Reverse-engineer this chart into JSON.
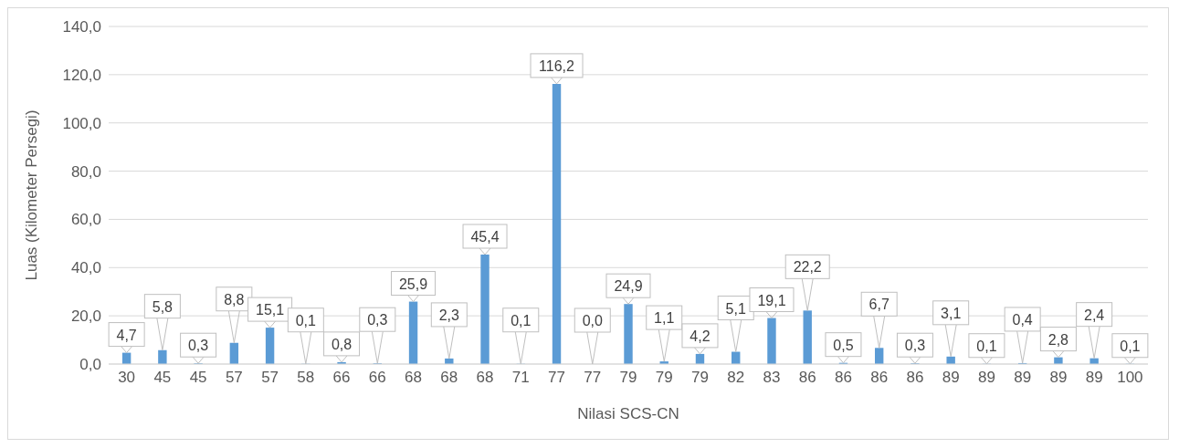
{
  "chart_data": {
    "type": "bar",
    "xlabel": "Nilasi SCS-CN",
    "ylabel": "Luas (Kilometer Persegi)",
    "categories": [
      "30",
      "45",
      "45",
      "57",
      "57",
      "58",
      "66",
      "66",
      "68",
      "68",
      "68",
      "71",
      "77",
      "77",
      "79",
      "79",
      "79",
      "82",
      "83",
      "86",
      "86",
      "86",
      "86",
      "89",
      "89",
      "89",
      "89",
      "89",
      "100"
    ],
    "values": [
      4.7,
      5.8,
      0.3,
      8.8,
      15.1,
      0.1,
      0.8,
      0.3,
      25.9,
      2.3,
      45.4,
      0.1,
      116.2,
      0.0,
      24.9,
      1.1,
      4.2,
      5.1,
      19.1,
      22.2,
      0.5,
      6.7,
      0.3,
      3.1,
      0.1,
      0.4,
      2.8,
      2.4,
      0.1
    ],
    "value_labels": [
      "4,7",
      "5,8",
      "0,3",
      "8,8",
      "15,1",
      "0,1",
      "0,8",
      "0,3",
      "25,9",
      "2,3",
      "45,4",
      "0,1",
      "116,2",
      "0,0",
      "24,9",
      "1,1",
      "4,2",
      "5,1",
      "19,1",
      "22,2",
      "0,5",
      "6,7",
      "0,3",
      "3,1",
      "0,1",
      "0,4",
      "2,8",
      "2,4",
      "0,1"
    ],
    "color": "#5b9bd5",
    "ylim": [
      0,
      140
    ],
    "yticks": [
      {
        "value": 0,
        "label": "0,0"
      },
      {
        "value": 20,
        "label": "20,0"
      },
      {
        "value": 40,
        "label": "40,0"
      },
      {
        "value": 60,
        "label": "60,0"
      },
      {
        "value": 80,
        "label": "80,0"
      },
      {
        "value": 100,
        "label": "100,0"
      },
      {
        "value": 120,
        "label": "120,0"
      },
      {
        "value": 140,
        "label": "140,0"
      }
    ],
    "grid": "y",
    "legend": false
  }
}
